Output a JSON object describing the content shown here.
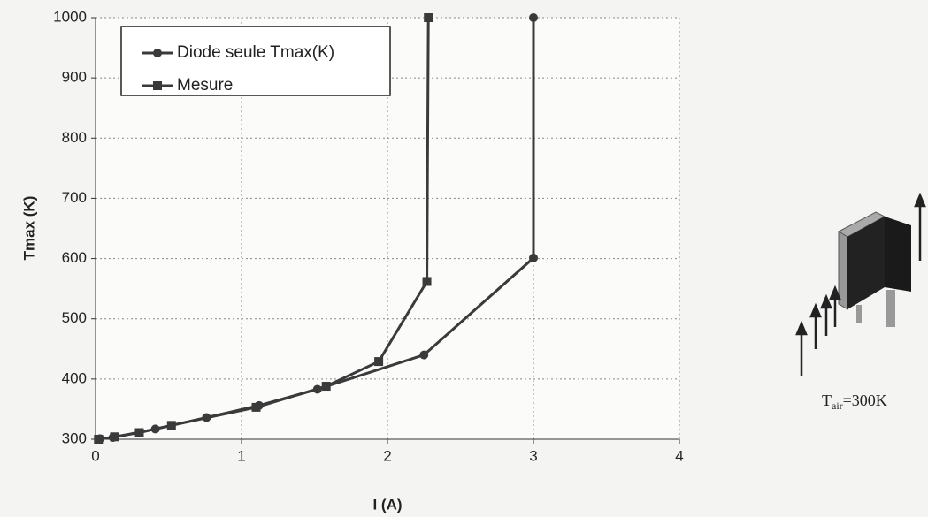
{
  "chart_data": {
    "type": "line",
    "x_label": "I (A)",
    "y_label": "Tmax (K)",
    "xlim": [
      0,
      4
    ],
    "xticks": [
      0,
      1,
      2,
      3,
      4
    ],
    "ylim": [
      300,
      1000
    ],
    "yticks": [
      300,
      400,
      500,
      600,
      700,
      800,
      900,
      1000
    ],
    "grid": true,
    "legend": "upper left",
    "series": [
      {
        "name": "Diode seule Tmax(K)",
        "color": "#3a3a3a",
        "marker": "circle",
        "x": [
          0.03,
          0.12,
          0.41,
          0.76,
          1.12,
          1.52,
          2.25,
          3.0,
          3.0
        ],
        "values": [
          301,
          303,
          317,
          336,
          356,
          383,
          440,
          601,
          1000
        ]
      },
      {
        "name": "Mesure",
        "color": "#3a3a3a",
        "marker": "square",
        "x": [
          0.02,
          0.13,
          0.3,
          0.52,
          1.1,
          1.58,
          1.94,
          2.27,
          2.28
        ],
        "values": [
          300,
          304,
          311,
          323,
          353,
          388,
          429,
          562,
          1000
        ]
      }
    ],
    "annotation": {
      "main": "T",
      "sub": "air",
      "rest": "=300K"
    }
  }
}
